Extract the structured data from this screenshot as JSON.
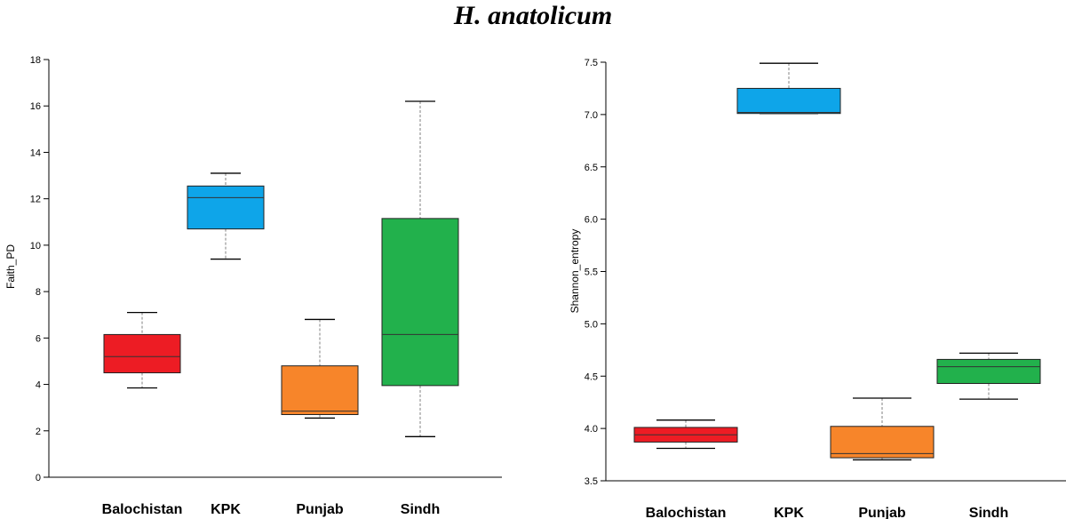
{
  "figure_title": "H. anatolicum",
  "chart_data": [
    {
      "type": "box",
      "title": "",
      "xlabel": "",
      "ylabel": "Faith_PD",
      "ylim": [
        0,
        18
      ],
      "yticks": [
        0,
        2,
        4,
        6,
        8,
        10,
        12,
        14,
        16,
        18
      ],
      "categories": [
        "Balochistan",
        "KPK",
        "Punjab",
        "Sindh"
      ],
      "colors": [
        "#ed1c24",
        "#0ea5e9",
        "#f7852a",
        "#22b14c"
      ],
      "boxes": [
        {
          "min": 3.85,
          "q1": 4.5,
          "median": 5.2,
          "q3": 6.15,
          "max": 7.1
        },
        {
          "min": 9.4,
          "q1": 10.7,
          "median": 12.05,
          "q3": 12.55,
          "max": 13.1
        },
        {
          "min": 2.55,
          "q1": 2.7,
          "median": 2.85,
          "q3": 4.8,
          "max": 6.8
        },
        {
          "min": 1.75,
          "q1": 3.95,
          "median": 6.15,
          "q3": 11.15,
          "max": 16.2
        }
      ]
    },
    {
      "type": "box",
      "title": "",
      "xlabel": "",
      "ylabel": "Shannon_entropy",
      "ylim": [
        3.5,
        7.5
      ],
      "yticks": [
        "3.5",
        "4.0",
        "4.5",
        "5.0",
        "5.5",
        "6.0",
        "6.5",
        "7.0",
        "7.5"
      ],
      "categories": [
        "Balochistan",
        "KPK",
        "Punjab",
        "Sindh"
      ],
      "colors": [
        "#ed1c24",
        "#0ea5e9",
        "#f7852a",
        "#22b14c"
      ],
      "boxes": [
        {
          "min": 3.81,
          "q1": 3.87,
          "median": 3.94,
          "q3": 4.01,
          "max": 4.08
        },
        {
          "min": 7.01,
          "q1": 7.01,
          "median": 7.02,
          "q3": 7.25,
          "max": 7.49
        },
        {
          "min": 3.7,
          "q1": 3.72,
          "median": 3.76,
          "q3": 4.02,
          "max": 4.29
        },
        {
          "min": 4.28,
          "q1": 4.43,
          "median": 4.59,
          "q3": 4.66,
          "max": 4.72
        }
      ]
    }
  ]
}
